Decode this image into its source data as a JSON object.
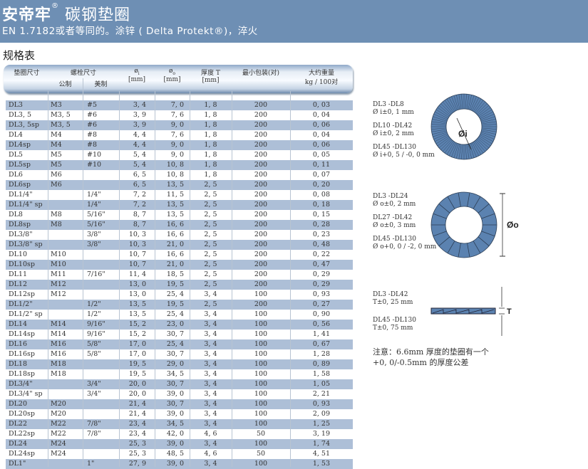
{
  "header": {
    "brand": "安帝牢",
    "reg": "®",
    "title": "碳钢垫圈",
    "subtitle": "EN 1.7182或者等同的。涂锌 ( Delta Protekt®)，淬火"
  },
  "section_title": "规格表",
  "colors": {
    "band": "#6e8fb4",
    "row_alt": "#adbfd7",
    "washer": "#5b82b0"
  },
  "table": {
    "headers": {
      "size": "垫圈尺寸",
      "bolt": "螺栓尺寸",
      "metric": "公制",
      "imperial": "美制",
      "di": "ø",
      "di_sub": "i",
      "di_unit": "[mm]",
      "do": "ø",
      "do_sub": "o",
      "do_unit": "[mm]",
      "t": "厚度 T",
      "t_unit": "[mm]",
      "pack": "最小包装(对)",
      "weight": "大约重量",
      "weight_unit": "kg / 100对"
    },
    "rows": [
      [
        "DL3",
        "M3",
        "#5",
        "3, 4",
        "7, 0",
        "1, 8",
        "200",
        "0, 03"
      ],
      [
        "DL3, 5",
        "M3, 5",
        "#6",
        "3, 9",
        "7, 6",
        "1, 8",
        "200",
        "0, 04"
      ],
      [
        "DL3, 5sp",
        "M3, 5",
        "#6",
        "3, 9",
        "9, 0",
        "1, 8",
        "200",
        "0, 06"
      ],
      [
        "DL4",
        "M4",
        "#8",
        "4, 4",
        "7, 6",
        "1, 8",
        "200",
        "0, 04"
      ],
      [
        "DL4sp",
        "M4",
        "#8",
        "4, 4",
        "9, 0",
        "1, 8",
        "200",
        "0, 06"
      ],
      [
        "DL5",
        "M5",
        "#10",
        "5, 4",
        "9, 0",
        "1, 8",
        "200",
        "0, 05"
      ],
      [
        "DL5sp",
        "M5",
        "#10",
        "5, 4",
        "10, 8",
        "1, 8",
        "200",
        "0, 11"
      ],
      [
        "DL6",
        "M6",
        "",
        "6, 5",
        "10, 8",
        "1, 8",
        "200",
        "0, 07"
      ],
      [
        "DL6sp",
        "M6",
        "",
        "6, 5",
        "13, 5",
        "2, 5",
        "200",
        "0, 20"
      ],
      [
        "DL1/4\"",
        "",
        "1/4\"",
        "7, 2",
        "11, 5",
        "2, 5",
        "200",
        "0, 08"
      ],
      [
        "DL1/4\" sp",
        "",
        "1/4\"",
        "7, 2",
        "13, 5",
        "2, 5",
        "200",
        "0, 18"
      ],
      [
        "DL8",
        "M8",
        "5/16\"",
        "8, 7",
        "13, 5",
        "2, 5",
        "200",
        "0, 15"
      ],
      [
        "DL8sp",
        "M8",
        "5/16\"",
        "8, 7",
        "16, 6",
        "2, 5",
        "200",
        "0, 28"
      ],
      [
        "DL3/8\"",
        "",
        "3/8\"",
        "10, 3",
        "16, 6",
        "2, 5",
        "200",
        "0, 23"
      ],
      [
        "DL3/8\" sp",
        "",
        "3/8\"",
        "10, 3",
        "21, 0",
        "2, 5",
        "200",
        "0, 48"
      ],
      [
        "DL10",
        "M10",
        "",
        "10, 7",
        "16, 6",
        "2, 5",
        "200",
        "0, 22"
      ],
      [
        "DL10sp",
        "M10",
        "",
        "10, 7",
        "21, 0",
        "2, 5",
        "200",
        "0, 47"
      ],
      [
        "DL11",
        "M11",
        "7/16\"",
        "11, 4",
        "18, 5",
        "2, 5",
        "200",
        "0, 29"
      ],
      [
        "DL12",
        "M12",
        "",
        "13, 0",
        "19, 5",
        "2, 5",
        "200",
        "0, 29"
      ],
      [
        "DL12sp",
        "M12",
        "",
        "13, 0",
        "25, 4",
        "3, 4",
        "100",
        "0, 93"
      ],
      [
        "DL1/2\"",
        "",
        "1/2\"",
        "13, 5",
        "19, 5",
        "2, 5",
        "200",
        "0, 27"
      ],
      [
        "DL1/2\" sp",
        "",
        "1/2\"",
        "13, 5",
        "25, 4",
        "3, 4",
        "100",
        "0, 90"
      ],
      [
        "DL14",
        "M14",
        "9/16\"",
        "15, 2",
        "23, 0",
        "3, 4",
        "100",
        "0, 56"
      ],
      [
        "DL14sp",
        "M14",
        "9/16\"",
        "15, 2",
        "30, 7",
        "3, 4",
        "100",
        "1, 41"
      ],
      [
        "DL16",
        "M16",
        "5/8\"",
        "17, 0",
        "25, 4",
        "3, 4",
        "100",
        "0, 67"
      ],
      [
        "DL16sp",
        "M16",
        "5/8\"",
        "17, 0",
        "30, 7",
        "3, 4",
        "100",
        "1, 28"
      ],
      [
        "DL18",
        "M18",
        "",
        "19, 5",
        "29, 0",
        "3, 4",
        "100",
        "0, 89"
      ],
      [
        "DL18sp",
        "M18",
        "",
        "19, 5",
        "34, 5",
        "3, 4",
        "100",
        "1, 58"
      ],
      [
        "DL3/4\"",
        "",
        "3/4\"",
        "20, 0",
        "30, 7",
        "3, 4",
        "100",
        "1, 05"
      ],
      [
        "DL3/4\" sp",
        "",
        "3/4\"",
        "20, 0",
        "39, 0",
        "3, 4",
        "100",
        "2, 21"
      ],
      [
        "DL20",
        "M20",
        "",
        "21, 4",
        "30, 7",
        "3, 4",
        "100",
        "0, 93"
      ],
      [
        "DL20sp",
        "M20",
        "",
        "21, 4",
        "39, 0",
        "3, 4",
        "100",
        "2, 09"
      ],
      [
        "DL22",
        "M22",
        "7/8\"",
        "23, 4",
        "34, 5",
        "3, 4",
        "100",
        "1, 25"
      ],
      [
        "DL22sp",
        "M22",
        "7/8\"",
        "23, 4",
        "42, 0",
        "4, 6",
        "50",
        "3, 19"
      ],
      [
        "DL24",
        "M24",
        "",
        "25, 3",
        "39, 0",
        "3, 4",
        "100",
        "1, 74"
      ],
      [
        "DL24sp",
        "M24",
        "",
        "25, 3",
        "48, 5",
        "4, 6",
        "50",
        "4, 51"
      ],
      [
        "DL1\"",
        "",
        "1\"",
        "27, 9",
        "39, 0",
        "3, 4",
        "100",
        "1, 53"
      ]
    ]
  },
  "tolerances": {
    "inner": [
      [
        "DL3 -DL8",
        "Ø i±0, 1 mm"
      ],
      [
        "DL10 -DL42",
        "Ø i±0, 2 mm"
      ],
      [
        "DL45 -DL130",
        "Ø i+0, 5 / -0, 0 mm"
      ]
    ],
    "inner_label": "Øi",
    "outer": [
      [
        "DL3 -DL24",
        "Ø o±0, 2 mm"
      ],
      [
        "DL27 -DL42",
        "Ø o±0, 3 mm"
      ],
      [
        "DL45 -DL130",
        "Ø o+0, 0 / -2, 0 mm"
      ]
    ],
    "outer_label": "Øo",
    "thickness": [
      [
        "DL3 -DL42",
        "T±0, 25 mm"
      ],
      [
        "DL45 -DL130",
        "T±0, 75 mm"
      ]
    ],
    "thickness_label": "T"
  },
  "note": [
    "注意：6.6mm 厚度的垫圈有一个",
    "+0, 0/-0.5mm 的厚度公差"
  ]
}
